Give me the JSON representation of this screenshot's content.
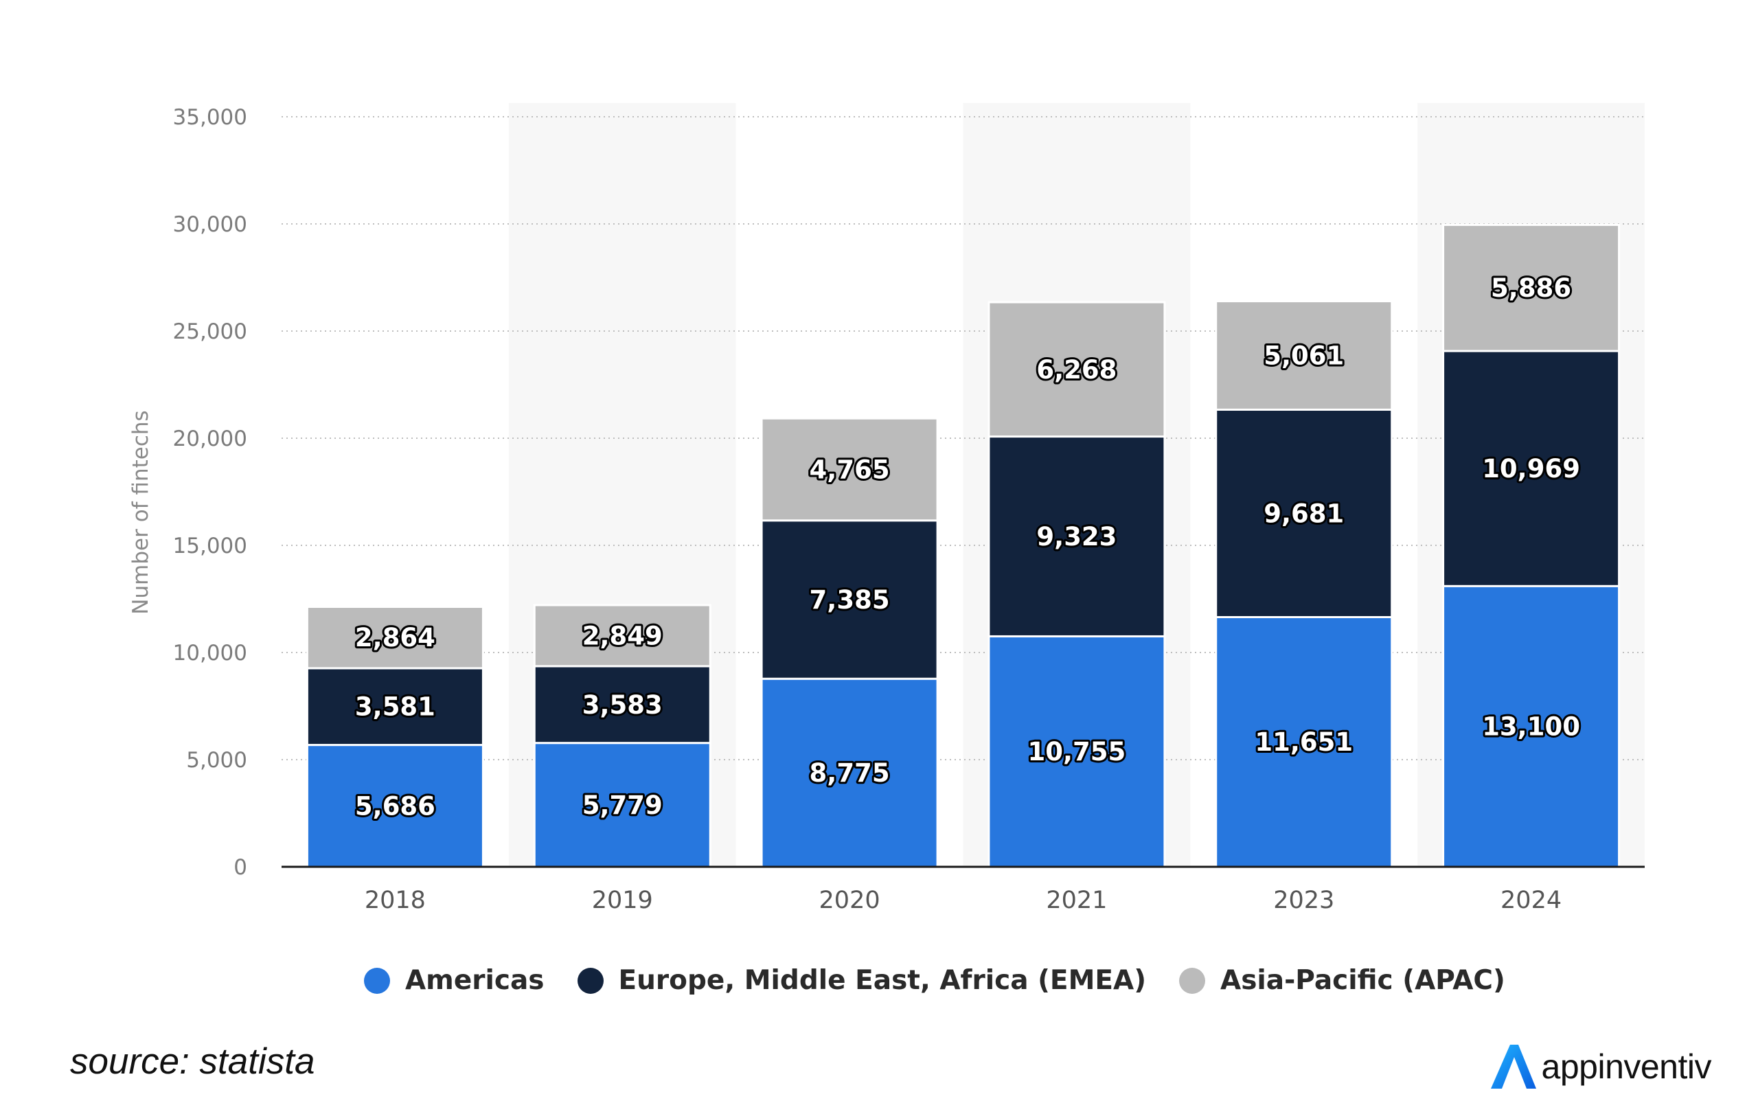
{
  "chart_data": {
    "type": "bar",
    "stacked": true,
    "categories": [
      "2018",
      "2019",
      "2020",
      "2021",
      "2023",
      "2024"
    ],
    "series": [
      {
        "name": "Americas",
        "color": "#2777DE",
        "values": [
          5686,
          5779,
          8775,
          10755,
          11651,
          13100
        ]
      },
      {
        "name": "Europe, Middle East, Africa (EMEA)",
        "color": "#12233D",
        "values": [
          3581,
          3583,
          7385,
          9323,
          9681,
          10969
        ]
      },
      {
        "name": "Asia-Pacific (APAC)",
        "color": "#BBBBBB",
        "values": [
          2864,
          2849,
          4765,
          6268,
          5061,
          5886
        ]
      }
    ],
    "ylabel": "Number of fintechs",
    "ylim": [
      0,
      35000
    ],
    "yticks": [
      0,
      5000,
      10000,
      15000,
      20000,
      25000,
      30000,
      35000
    ],
    "ytick_labels": [
      "0",
      "5,000",
      "10,000",
      "15,000",
      "20,000",
      "25,000",
      "30,000",
      "35,000"
    ],
    "grid": "horizontal dotted",
    "legend_position": "bottom"
  },
  "footer": {
    "source": "source: statista",
    "brand": "appinventiv"
  }
}
